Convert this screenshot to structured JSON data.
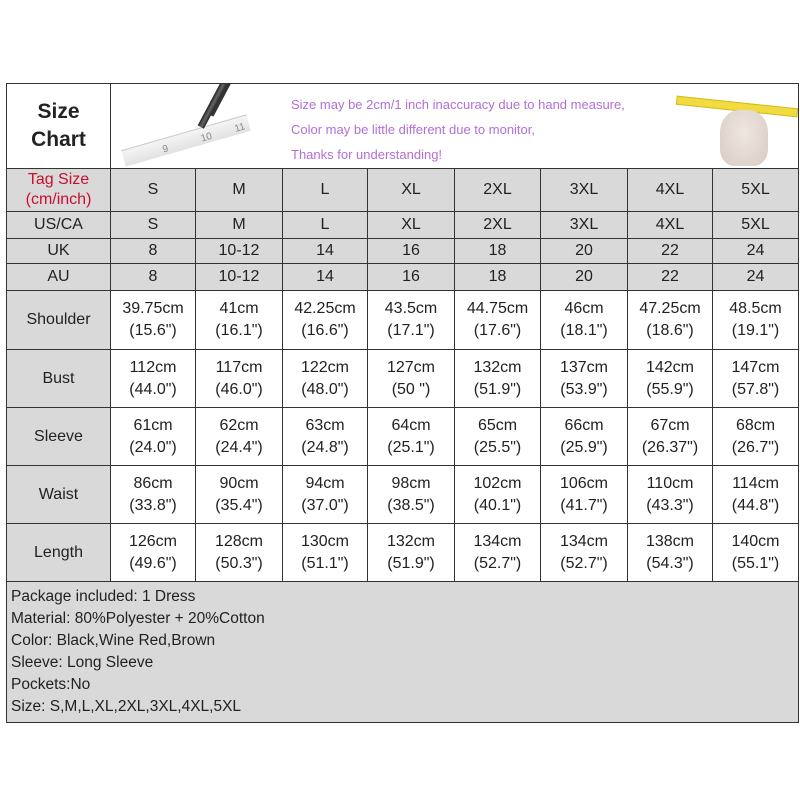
{
  "header": {
    "title_line1": "Size",
    "title_line2": "Chart",
    "notice": [
      "Size may be 2cm/1 inch inaccuracy due to hand measure,",
      "Color may be little different due to monitor,",
      "Thanks for understanding!"
    ],
    "ruler_marks": [
      "9",
      "10",
      "11"
    ]
  },
  "colors": {
    "notice_text": "#b36fd6",
    "tag_label": "#c8102e",
    "header_bg": "#d9d9d9"
  },
  "tag_size": {
    "label_line1": "Tag Size",
    "label_line2": "(cm/inch)",
    "values": [
      "S",
      "M",
      "L",
      "XL",
      "2XL",
      "3XL",
      "4XL",
      "5XL"
    ]
  },
  "size_rows": [
    {
      "label": "US/CA",
      "values": [
        "S",
        "M",
        "L",
        "XL",
        "2XL",
        "3XL",
        "4XL",
        "5XL"
      ]
    },
    {
      "label": "UK",
      "values": [
        "8",
        "10-12",
        "14",
        "16",
        "18",
        "20",
        "22",
        "24"
      ]
    },
    {
      "label": "AU",
      "values": [
        "8",
        "10-12",
        "14",
        "16",
        "18",
        "20",
        "22",
        "24"
      ]
    }
  ],
  "measure_rows": [
    {
      "label": "Shoulder",
      "cm": [
        "39.75cm",
        "41cm",
        "42.25cm",
        "43.5cm",
        "44.75cm",
        "46cm",
        "47.25cm",
        "48.5cm"
      ],
      "inch": [
        "(15.6\")",
        "(16.1\")",
        "(16.6\")",
        "(17.1\")",
        "(17.6\")",
        "(18.1\")",
        "(18.6\")",
        "(19.1\")"
      ]
    },
    {
      "label": "Bust",
      "cm": [
        "112cm",
        "117cm",
        "122cm",
        "127cm",
        "132cm",
        "137cm",
        "142cm",
        "147cm"
      ],
      "inch": [
        "(44.0\")",
        "(46.0\")",
        "(48.0\")",
        "(50 \")",
        "(51.9\")",
        "(53.9\")",
        "(55.9\")",
        "(57.8\")"
      ]
    },
    {
      "label": "Sleeve",
      "cm": [
        "61cm",
        "62cm",
        "63cm",
        "64cm",
        "65cm",
        "66cm",
        "67cm",
        "68cm"
      ],
      "inch": [
        "(24.0\")",
        "(24.4\")",
        "(24.8\")",
        "(25.1\")",
        "(25.5\")",
        "(25.9\")",
        "(26.37\")",
        "(26.7\")"
      ]
    },
    {
      "label": "Waist",
      "cm": [
        "86cm",
        "90cm",
        "94cm",
        "98cm",
        "102cm",
        "106cm",
        "110cm",
        "114cm"
      ],
      "inch": [
        "(33.8\")",
        "(35.4\")",
        "(37.0\")",
        "(38.5\")",
        "(40.1\")",
        "(41.7\")",
        "(43.3\")",
        "(44.8\")"
      ]
    },
    {
      "label": "Length",
      "cm": [
        "126cm",
        "128cm",
        "130cm",
        "132cm",
        "134cm",
        "134cm",
        "138cm",
        "140cm"
      ],
      "inch": [
        "(49.6\")",
        "(50.3\")",
        "(51.1\")",
        "(51.9\")",
        "(52.7\")",
        "(52.7\")",
        "(54.3\")",
        "(55.1\")"
      ]
    }
  ],
  "info": [
    "Package included: 1 Dress",
    "Material: 80%Polyester + 20%Cotton",
    "Color: Black,Wine Red,Brown",
    "Sleeve: Long Sleeve",
    "Pockets:No",
    "Size: S,M,L,XL,2XL,3XL,4XL,5XL"
  ]
}
